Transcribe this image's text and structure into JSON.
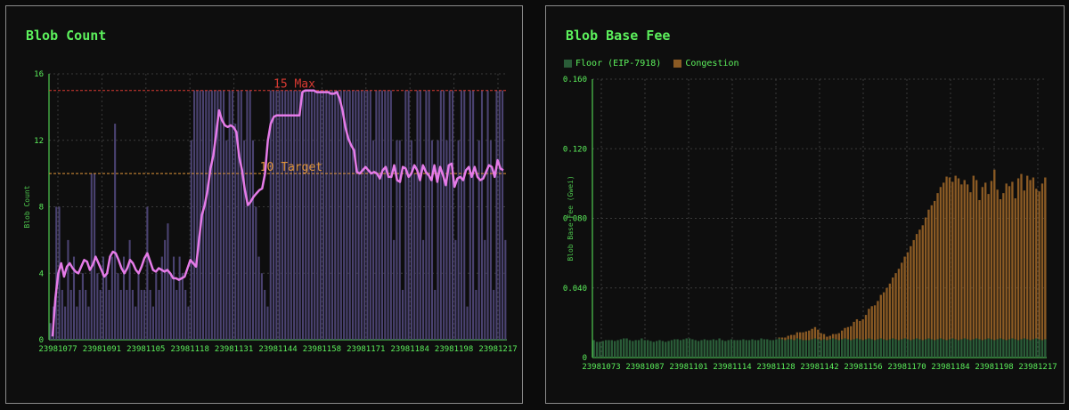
{
  "colors": {
    "accent": "#5cf05c",
    "blob_bar": "#4a4270",
    "blob_line": "#e57be8",
    "max_line": "#d93a32",
    "target_line": "#e0953a",
    "floor": "#2a5c38",
    "congestion": "#8a5a24"
  },
  "chart_data": [
    {
      "type": "bar",
      "title": "Blob Count",
      "ylabel": "Blob Count",
      "ylim": [
        0,
        16
      ],
      "yticks": [
        "0",
        "4",
        "8",
        "12",
        "16"
      ],
      "x_tick_labels": [
        "23981077",
        "23981091",
        "23981105",
        "23981118",
        "23981131",
        "23981144",
        "23981158",
        "23981171",
        "23981184",
        "23981198",
        "23981217"
      ],
      "grid": true,
      "reference_lines": [
        {
          "label": "15 Max",
          "value": 15
        },
        {
          "label": "10 Target",
          "value": 10
        }
      ],
      "bar_values": [
        1,
        2,
        8,
        8,
        3,
        2,
        6,
        3,
        5,
        2,
        3,
        4,
        3,
        2,
        10,
        10,
        4,
        3,
        5,
        4,
        3,
        5,
        13,
        4,
        3,
        5,
        3,
        6,
        3,
        2,
        4,
        3,
        3,
        8,
        3,
        2,
        4,
        3,
        5,
        6,
        7,
        4,
        5,
        3,
        5,
        4,
        3,
        2,
        12,
        15,
        15,
        15,
        15,
        15,
        15,
        15,
        15,
        15,
        15,
        15,
        12,
        15,
        15,
        13,
        15,
        15,
        12,
        15,
        15,
        12,
        8,
        5,
        4,
        3,
        2,
        15,
        15,
        15,
        15,
        15,
        15,
        15,
        15,
        15,
        15,
        15,
        15,
        15,
        15,
        15,
        15,
        15,
        15,
        15,
        15,
        15,
        15,
        15,
        15,
        15,
        15,
        15,
        15,
        15,
        15,
        15,
        15,
        15,
        15,
        15,
        12,
        15,
        15,
        15,
        15,
        15,
        15,
        6,
        12,
        12,
        3,
        15,
        15,
        12,
        10,
        15,
        15,
        6,
        15,
        15,
        12,
        3,
        12,
        15,
        15,
        12,
        15,
        15,
        6,
        12,
        15,
        15,
        2,
        15,
        15,
        3,
        12,
        15,
        6,
        15,
        12,
        3,
        15,
        15,
        15,
        6
      ],
      "series": [
        {
          "label": "moving average",
          "x": [
            0,
            1,
            2,
            3,
            4,
            5,
            6,
            7,
            8,
            9,
            10,
            11,
            12,
            13,
            14,
            15,
            16,
            17,
            18,
            19,
            20,
            21,
            22,
            23,
            24,
            25,
            26,
            27,
            28,
            29,
            30,
            31,
            32,
            33,
            34,
            35,
            36,
            37,
            38,
            39,
            40,
            41,
            42,
            43,
            44,
            45,
            46,
            47,
            48,
            49,
            50,
            51,
            52,
            53,
            54,
            55,
            56,
            57,
            58,
            59,
            60,
            61,
            62,
            63,
            64,
            65,
            66,
            67,
            68,
            69,
            70,
            71,
            72,
            73,
            74,
            75,
            76,
            77,
            78,
            79,
            80,
            81,
            82,
            83,
            84,
            85,
            86,
            87,
            88,
            89,
            90,
            91,
            92,
            93,
            94,
            95,
            96,
            97,
            98,
            99,
            100,
            101,
            102,
            103,
            104,
            105,
            106,
            107,
            108,
            109,
            110,
            111,
            112,
            113,
            114,
            115,
            116,
            117,
            118,
            119,
            120,
            121,
            122,
            123,
            124,
            125,
            126,
            127,
            128,
            129,
            130,
            131,
            132,
            133,
            134,
            135,
            136,
            137,
            138,
            139,
            140,
            141,
            142,
            143,
            144,
            145,
            146,
            147,
            148,
            149,
            150,
            151,
            152,
            153,
            154,
            155,
            156,
            157
          ],
          "values": [
            0.2,
            2.5,
            4.0,
            4.6,
            3.8,
            4.4,
            4.6,
            4.3,
            4.1,
            4.0,
            4.4,
            4.8,
            4.7,
            4.2,
            4.5,
            5.0,
            4.6,
            4.2,
            3.8,
            4.0,
            5.0,
            5.3,
            5.2,
            4.8,
            4.3,
            4.0,
            4.3,
            4.8,
            4.6,
            4.2,
            4.0,
            4.4,
            4.9,
            5.2,
            4.7,
            4.2,
            4.1,
            4.3,
            4.2,
            4.1,
            4.2,
            4.0,
            3.7,
            3.7,
            3.6,
            3.7,
            3.8,
            4.3,
            4.8,
            4.6,
            4.4,
            6.0,
            7.5,
            8.1,
            9.0,
            10.3,
            11.1,
            12.4,
            13.8,
            13.2,
            12.9,
            12.8,
            12.9,
            12.8,
            12.5,
            11.0,
            10.2,
            9.0,
            8.1,
            8.3,
            8.6,
            8.8,
            9.0,
            9.1,
            10.0,
            12.0,
            13.0,
            13.4,
            13.5,
            13.5,
            13.5,
            13.5,
            13.5,
            13.5,
            13.5,
            13.5,
            13.5,
            14.9,
            15.0,
            15.0,
            15.0,
            15.0,
            14.9,
            14.9,
            14.9,
            14.9,
            14.9,
            14.8,
            14.8,
            14.9,
            14.5,
            13.8,
            12.8,
            12.1,
            11.7,
            11.4,
            10.1,
            10.0,
            10.2,
            10.4,
            10.2,
            10.0,
            10.1,
            10.0,
            9.7,
            10.2,
            10.4,
            9.8,
            9.8,
            10.5,
            9.6,
            9.5,
            10.4,
            10.3,
            9.8,
            10.0,
            10.5,
            10.2,
            9.6,
            10.5,
            10.1,
            9.9,
            9.6,
            10.5,
            9.5,
            10.4,
            9.9,
            9.3,
            10.5,
            10.6,
            9.2,
            9.7,
            9.8,
            9.6,
            10.2,
            10.4,
            9.8,
            10.4,
            9.8,
            9.6,
            9.7,
            10.1,
            10.5,
            10.4,
            9.8,
            10.8,
            10.3,
            10.2
          ]
        }
      ]
    },
    {
      "type": "bar",
      "title": "Blob Base Fee",
      "ylabel": "Blob Base Fee (Gwei)",
      "ylim": [
        0,
        0.16
      ],
      "yticks": [
        "0",
        "0.040",
        "0.080",
        "0.120",
        "0.160"
      ],
      "x_tick_labels": [
        "23981073",
        "23981087",
        "23981101",
        "23981114",
        "23981128",
        "23981142",
        "23981156",
        "23981170",
        "23981184",
        "23981198",
        "23981217"
      ],
      "grid": true,
      "legend": {
        "placement": "top-left",
        "items": [
          "Floor (EIP-7918)",
          "Congestion"
        ]
      },
      "series": [
        {
          "name": "Floor (EIP-7918)",
          "values": [
            0.01,
            0.009,
            0.009,
            0.0095,
            0.01,
            0.01,
            0.01,
            0.0095,
            0.01,
            0.0105,
            0.011,
            0.011,
            0.01,
            0.0095,
            0.01,
            0.01,
            0.011,
            0.01,
            0.01,
            0.0095,
            0.009,
            0.0095,
            0.01,
            0.0095,
            0.009,
            0.0095,
            0.01,
            0.0105,
            0.0105,
            0.01,
            0.0105,
            0.011,
            0.011,
            0.0105,
            0.01,
            0.0095,
            0.01,
            0.0105,
            0.01,
            0.01,
            0.0105,
            0.01,
            0.011,
            0.01,
            0.0095,
            0.01,
            0.0105,
            0.01,
            0.01,
            0.01,
            0.0105,
            0.01,
            0.01,
            0.0105,
            0.01,
            0.01,
            0.011,
            0.0105,
            0.0105,
            0.01,
            0.01,
            0.0105,
            0.011,
            0.0105,
            0.01,
            0.0105,
            0.0105,
            0.01,
            0.011,
            0.0105,
            0.01,
            0.01,
            0.01,
            0.0105,
            0.011,
            0.0105,
            0.01,
            0.0105,
            0.01,
            0.0105,
            0.011,
            0.0105,
            0.01,
            0.0105,
            0.011,
            0.0105,
            0.01,
            0.0105,
            0.011,
            0.0105,
            0.01,
            0.0105,
            0.011,
            0.0105,
            0.01,
            0.0105,
            0.011,
            0.0105,
            0.01,
            0.0105,
            0.011,
            0.0105,
            0.01,
            0.0105,
            0.011,
            0.0105,
            0.01,
            0.0105,
            0.011,
            0.0105,
            0.01,
            0.0105,
            0.011,
            0.0105,
            0.01,
            0.0105,
            0.011,
            0.0105,
            0.01,
            0.0105,
            0.011,
            0.0105,
            0.01,
            0.0105,
            0.011,
            0.0105,
            0.01,
            0.0105,
            0.011,
            0.0105,
            0.01,
            0.0105,
            0.011,
            0.0105,
            0.01,
            0.0105,
            0.011,
            0.0105,
            0.01,
            0.0105,
            0.011,
            0.0105,
            0.01,
            0.0105,
            0.011,
            0.0105,
            0.01,
            0.0105,
            0.011,
            0.0105,
            0.01,
            0.0105
          ]
        },
        {
          "name": "Congestion",
          "values": [
            0,
            0,
            0,
            0,
            0,
            0,
            0,
            0,
            0,
            0,
            0,
            0,
            0,
            0,
            0,
            0,
            0,
            0,
            0,
            0,
            0,
            0,
            0,
            0,
            0,
            0,
            0,
            0,
            0,
            0,
            0,
            0,
            0,
            0,
            0,
            0,
            0,
            0,
            0,
            0,
            0,
            0,
            0,
            0,
            0,
            0,
            0,
            0,
            0,
            0,
            0,
            0,
            0,
            0,
            0,
            0,
            0,
            0,
            0,
            0,
            0,
            0,
            0.0005,
            0.001,
            0.0015,
            0.002,
            0.0025,
            0.003,
            0.0035,
            0.004,
            0.0045,
            0.005,
            0.0055,
            0.006,
            0.0065,
            0.0055,
            0.004,
            0.003,
            0.002,
            0.002,
            0.0025,
            0.003,
            0.004,
            0.005,
            0.006,
            0.007,
            0.008,
            0.01,
            0.011,
            0.0105,
            0.012,
            0.014,
            0.017,
            0.019,
            0.02,
            0.022,
            0.025,
            0.027,
            0.03,
            0.032,
            0.035,
            0.038,
            0.041,
            0.044,
            0.047,
            0.05,
            0.054,
            0.057,
            0.06,
            0.063,
            0.066,
            0.07,
            0.074,
            0.077,
            0.08,
            0.084,
            0.087,
            0.09,
            0.094,
            0.093,
            0.09,
            0.094,
            0.093,
            0.089,
            0.091,
            0.089,
            0.085,
            0.094,
            0.091,
            0.08,
            0.088,
            0.09,
            0.083,
            0.091,
            0.098,
            0.086,
            0.08,
            0.084,
            0.09,
            0.088,
            0.09,
            0.081,
            0.093,
            0.095,
            0.085,
            0.094,
            0.092,
            0.093,
            0.086,
            0.085,
            0.09,
            0.093,
            0.084,
            0.095,
            0.089,
            0.094,
            0.087,
            0.091,
            0.088,
            0.085,
            0.094,
            0.093,
            0.088,
            0.092,
            0.086,
            0.089,
            0.09,
            0.094,
            0.085
          ]
        }
      ]
    }
  ]
}
